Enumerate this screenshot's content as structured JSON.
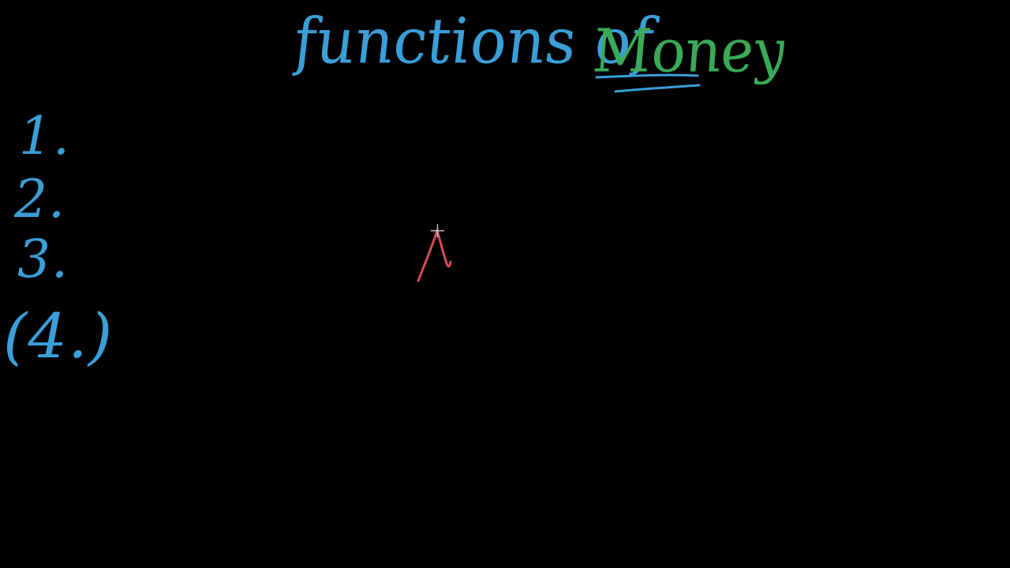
{
  "title": {
    "prefix": "functions of",
    "highlight": "Money"
  },
  "list": {
    "items": [
      "1.",
      "2.",
      "3.",
      "(4.)"
    ]
  },
  "colors": {
    "background": "#000000",
    "blue_ink": "#3a9fd8",
    "green_ink": "#3aaa57",
    "red_ink": "#d84a57",
    "cursor": "#c8c8c8"
  },
  "icons": {
    "cursor": "crosshair-cursor-icon"
  }
}
